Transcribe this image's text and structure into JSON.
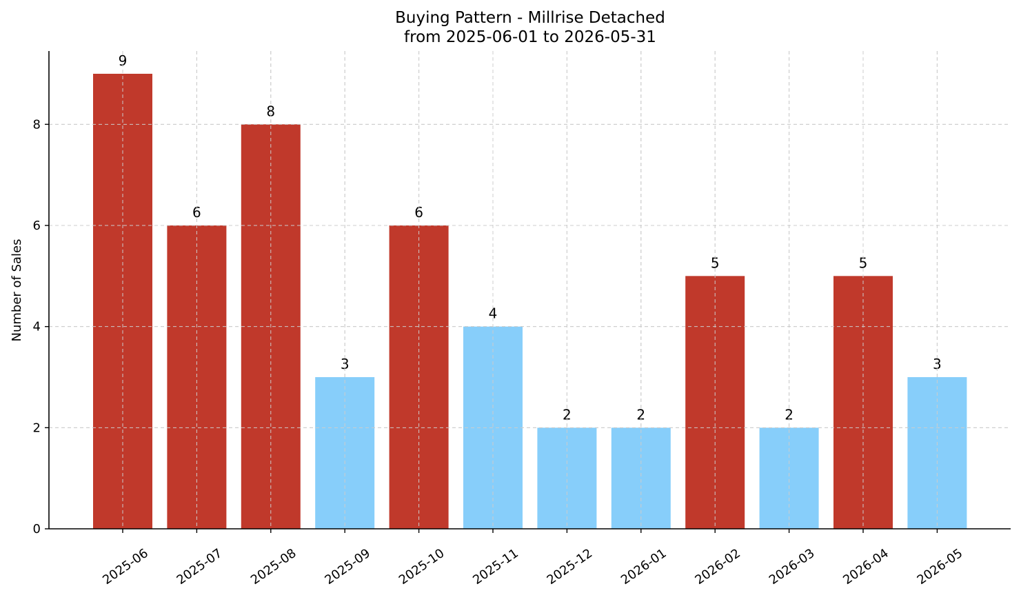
{
  "chart_data": {
    "type": "bar",
    "title": "Buying Pattern - Millrise Detached",
    "subtitle": "from 2025-06-01 to 2026-05-31",
    "xlabel": "",
    "ylabel": "Number of Sales",
    "categories": [
      "2025-06",
      "2025-07",
      "2025-08",
      "2025-09",
      "2025-10",
      "2025-11",
      "2025-12",
      "2026-01",
      "2026-02",
      "2026-03",
      "2026-04",
      "2026-05"
    ],
    "values": [
      9,
      6,
      8,
      3,
      6,
      4,
      2,
      2,
      5,
      2,
      5,
      3
    ],
    "bar_colors": [
      "#c0392b",
      "#c0392b",
      "#c0392b",
      "#87cefa",
      "#c0392b",
      "#87cefa",
      "#87cefa",
      "#87cefa",
      "#c0392b",
      "#87cefa",
      "#c0392b",
      "#87cefa"
    ],
    "ylim": [
      0,
      9.45
    ],
    "yticks": [
      0,
      2,
      4,
      6,
      8
    ],
    "grid": true,
    "data_labels": true
  }
}
